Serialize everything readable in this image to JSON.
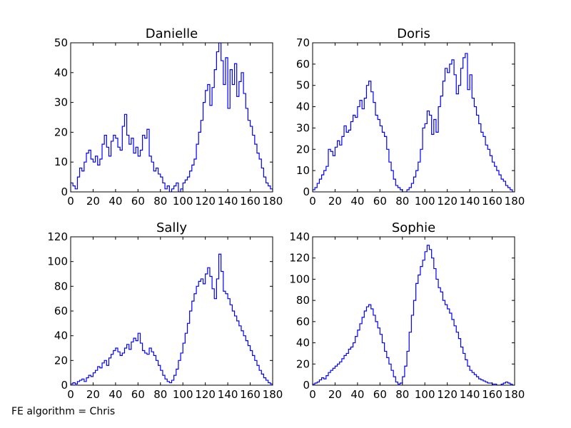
{
  "footer_text": "FE algorithm = Chris",
  "chart_data": [
    {
      "type": "histogram-step",
      "title": "Danielle",
      "xlim": [
        0,
        180
      ],
      "ylim": [
        0,
        50
      ],
      "xticks": [
        0,
        20,
        40,
        60,
        80,
        100,
        120,
        140,
        160,
        180
      ],
      "yticks": [
        0,
        10,
        20,
        30,
        40,
        50
      ],
      "color": "#0000ff",
      "x": [
        0,
        2,
        4,
        6,
        8,
        10,
        12,
        14,
        16,
        18,
        20,
        22,
        24,
        26,
        28,
        30,
        32,
        34,
        36,
        38,
        40,
        42,
        44,
        46,
        48,
        50,
        52,
        54,
        56,
        58,
        60,
        62,
        64,
        66,
        68,
        70,
        72,
        74,
        76,
        78,
        80,
        82,
        84,
        86,
        88,
        90,
        92,
        94,
        96,
        98,
        100,
        102,
        104,
        106,
        108,
        110,
        112,
        114,
        116,
        118,
        120,
        122,
        124,
        126,
        128,
        130,
        132,
        134,
        136,
        138,
        140,
        142,
        144,
        146,
        148,
        150,
        152,
        154,
        156,
        158,
        160,
        162,
        164,
        166,
        168,
        170,
        172,
        174,
        176,
        178
      ],
      "values": [
        3,
        2,
        1,
        5,
        8,
        7,
        10,
        13,
        14,
        11,
        10,
        12,
        9,
        11,
        16,
        19,
        15,
        12,
        17,
        19,
        18,
        15,
        14,
        22,
        26,
        19,
        16,
        18,
        13,
        15,
        12,
        14,
        19,
        18,
        21,
        12,
        10,
        7,
        8,
        6,
        5,
        3,
        1,
        2,
        0,
        1,
        2,
        3,
        0,
        1,
        3,
        4,
        5,
        7,
        9,
        11,
        16,
        20,
        24,
        30,
        34,
        36,
        29,
        35,
        41,
        47,
        50,
        44,
        36,
        45,
        28,
        41,
        36,
        43,
        32,
        37,
        40,
        33,
        28,
        24,
        22,
        19,
        16,
        13,
        11,
        8,
        5,
        3,
        2,
        1
      ]
    },
    {
      "type": "histogram-step",
      "title": "Doris",
      "xlim": [
        0,
        180
      ],
      "ylim": [
        0,
        70
      ],
      "xticks": [
        0,
        20,
        40,
        60,
        80,
        100,
        120,
        140,
        160,
        180
      ],
      "yticks": [
        0,
        10,
        20,
        30,
        40,
        50,
        60,
        70
      ],
      "color": "#0000ff",
      "x": [
        0,
        2,
        4,
        6,
        8,
        10,
        12,
        14,
        16,
        18,
        20,
        22,
        24,
        26,
        28,
        30,
        32,
        34,
        36,
        38,
        40,
        42,
        44,
        46,
        48,
        50,
        52,
        54,
        56,
        58,
        60,
        62,
        64,
        66,
        68,
        70,
        72,
        74,
        76,
        78,
        80,
        82,
        84,
        86,
        88,
        90,
        92,
        94,
        96,
        98,
        100,
        102,
        104,
        106,
        108,
        110,
        112,
        114,
        116,
        118,
        120,
        122,
        124,
        126,
        128,
        130,
        132,
        134,
        136,
        138,
        140,
        142,
        144,
        146,
        148,
        150,
        152,
        154,
        156,
        158,
        160,
        162,
        164,
        166,
        168,
        170,
        172,
        174,
        176,
        178
      ],
      "values": [
        1,
        2,
        4,
        6,
        8,
        10,
        12,
        20,
        19,
        17,
        21,
        24,
        22,
        26,
        31,
        28,
        29,
        33,
        36,
        35,
        40,
        43,
        39,
        44,
        50,
        52,
        47,
        42,
        36,
        34,
        31,
        28,
        26,
        20,
        14,
        10,
        6,
        3,
        2,
        1,
        0,
        0,
        1,
        2,
        4,
        7,
        10,
        14,
        20,
        30,
        32,
        38,
        36,
        27,
        34,
        28,
        40,
        45,
        52,
        58,
        56,
        60,
        62,
        55,
        46,
        50,
        58,
        63,
        65,
        48,
        55,
        44,
        40,
        36,
        32,
        28,
        26,
        22,
        20,
        17,
        14,
        12,
        10,
        8,
        6,
        5,
        3,
        2,
        1,
        0
      ]
    },
    {
      "type": "histogram-step",
      "title": "Sally",
      "xlim": [
        0,
        180
      ],
      "ylim": [
        0,
        120
      ],
      "xticks": [
        0,
        20,
        40,
        60,
        80,
        100,
        120,
        140,
        160,
        180
      ],
      "yticks": [
        0,
        20,
        40,
        60,
        80,
        100,
        120
      ],
      "color": "#0000ff",
      "x": [
        0,
        2,
        4,
        6,
        8,
        10,
        12,
        14,
        16,
        18,
        20,
        22,
        24,
        26,
        28,
        30,
        32,
        34,
        36,
        38,
        40,
        42,
        44,
        46,
        48,
        50,
        52,
        54,
        56,
        58,
        60,
        62,
        64,
        66,
        68,
        70,
        72,
        74,
        76,
        78,
        80,
        82,
        84,
        86,
        88,
        90,
        92,
        94,
        96,
        98,
        100,
        102,
        104,
        106,
        108,
        110,
        112,
        114,
        116,
        118,
        120,
        122,
        124,
        126,
        128,
        130,
        132,
        134,
        136,
        138,
        140,
        142,
        144,
        146,
        148,
        150,
        152,
        154,
        156,
        158,
        160,
        162,
        164,
        166,
        168,
        170,
        172,
        174,
        176,
        178
      ],
      "values": [
        1,
        2,
        1,
        3,
        4,
        5,
        3,
        6,
        8,
        7,
        10,
        12,
        15,
        14,
        18,
        20,
        16,
        22,
        25,
        28,
        30,
        27,
        24,
        26,
        30,
        33,
        29,
        35,
        38,
        36,
        42,
        34,
        28,
        26,
        25,
        30,
        27,
        24,
        20,
        16,
        12,
        8,
        5,
        3,
        2,
        4,
        8,
        13,
        20,
        26,
        34,
        42,
        50,
        60,
        68,
        74,
        80,
        84,
        86,
        82,
        90,
        95,
        88,
        78,
        70,
        86,
        106,
        92,
        76,
        74,
        70,
        65,
        60,
        56,
        52,
        48,
        44,
        40,
        36,
        32,
        28,
        24,
        20,
        16,
        12,
        9,
        6,
        4,
        2,
        1
      ]
    },
    {
      "type": "histogram-step",
      "title": "Sophie",
      "xlim": [
        0,
        180
      ],
      "ylim": [
        0,
        140
      ],
      "xticks": [
        0,
        20,
        40,
        60,
        80,
        100,
        120,
        140,
        160,
        180
      ],
      "yticks": [
        0,
        20,
        40,
        60,
        80,
        100,
        120,
        140
      ],
      "color": "#0000ff",
      "x": [
        0,
        2,
        4,
        6,
        8,
        10,
        12,
        14,
        16,
        18,
        20,
        22,
        24,
        26,
        28,
        30,
        32,
        34,
        36,
        38,
        40,
        42,
        44,
        46,
        48,
        50,
        52,
        54,
        56,
        58,
        60,
        62,
        64,
        66,
        68,
        70,
        72,
        74,
        76,
        78,
        80,
        82,
        84,
        86,
        88,
        90,
        92,
        94,
        96,
        98,
        100,
        102,
        104,
        106,
        108,
        110,
        112,
        114,
        116,
        118,
        120,
        122,
        124,
        126,
        128,
        130,
        132,
        134,
        136,
        138,
        140,
        142,
        144,
        146,
        148,
        150,
        152,
        154,
        156,
        158,
        160,
        162,
        164,
        166,
        168,
        170,
        172,
        174,
        176,
        178
      ],
      "values": [
        1,
        2,
        3,
        5,
        7,
        6,
        9,
        12,
        14,
        16,
        18,
        20,
        22,
        25,
        28,
        30,
        34,
        36,
        40,
        46,
        52,
        58,
        64,
        70,
        74,
        76,
        72,
        66,
        60,
        54,
        48,
        40,
        32,
        26,
        20,
        14,
        8,
        3,
        1,
        2,
        8,
        18,
        32,
        50,
        66,
        80,
        96,
        104,
        112,
        118,
        126,
        132,
        128,
        120,
        110,
        100,
        92,
        88,
        80,
        76,
        72,
        68,
        62,
        56,
        50,
        44,
        36,
        30,
        24,
        18,
        14,
        12,
        10,
        8,
        6,
        5,
        4,
        3,
        2,
        2,
        1,
        1,
        0,
        0,
        1,
        2,
        3,
        2,
        1,
        0
      ]
    }
  ]
}
